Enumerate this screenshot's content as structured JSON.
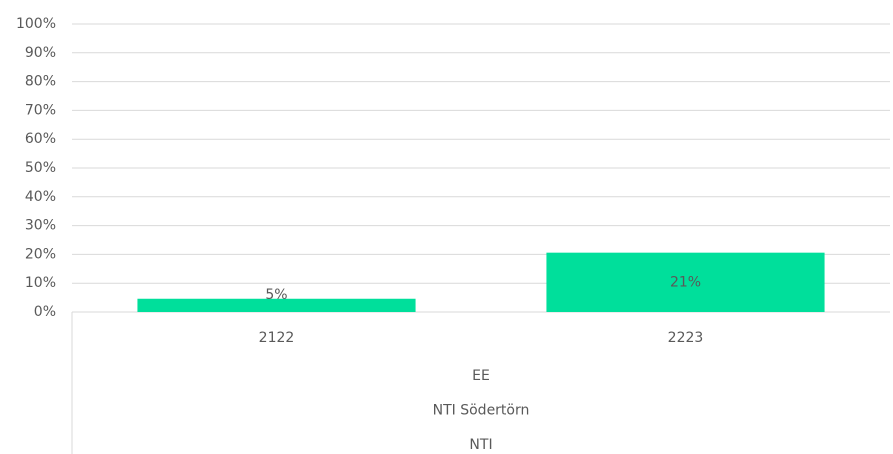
{
  "chart_data": {
    "type": "bar",
    "categories": [
      "2122",
      "2223"
    ],
    "category_groups": [
      "EE",
      "NTI Södertörn",
      "NTI"
    ],
    "values": [
      4.6,
      20.6
    ],
    "value_labels": [
      "5%",
      "21%"
    ],
    "color": "#00df9b",
    "ylim": [
      0,
      100
    ],
    "yticks": [
      {
        "value": 0,
        "label": "0%"
      },
      {
        "value": 10,
        "label": "10%"
      },
      {
        "value": 20,
        "label": "20%"
      },
      {
        "value": 30,
        "label": "30%"
      },
      {
        "value": 40,
        "label": "40%"
      },
      {
        "value": 50,
        "label": "50%"
      },
      {
        "value": 60,
        "label": "60%"
      },
      {
        "value": 70,
        "label": "70%"
      },
      {
        "value": 80,
        "label": "80%"
      },
      {
        "value": 90,
        "label": "90%"
      },
      {
        "value": 100,
        "label": "100%"
      }
    ],
    "grid": true
  }
}
